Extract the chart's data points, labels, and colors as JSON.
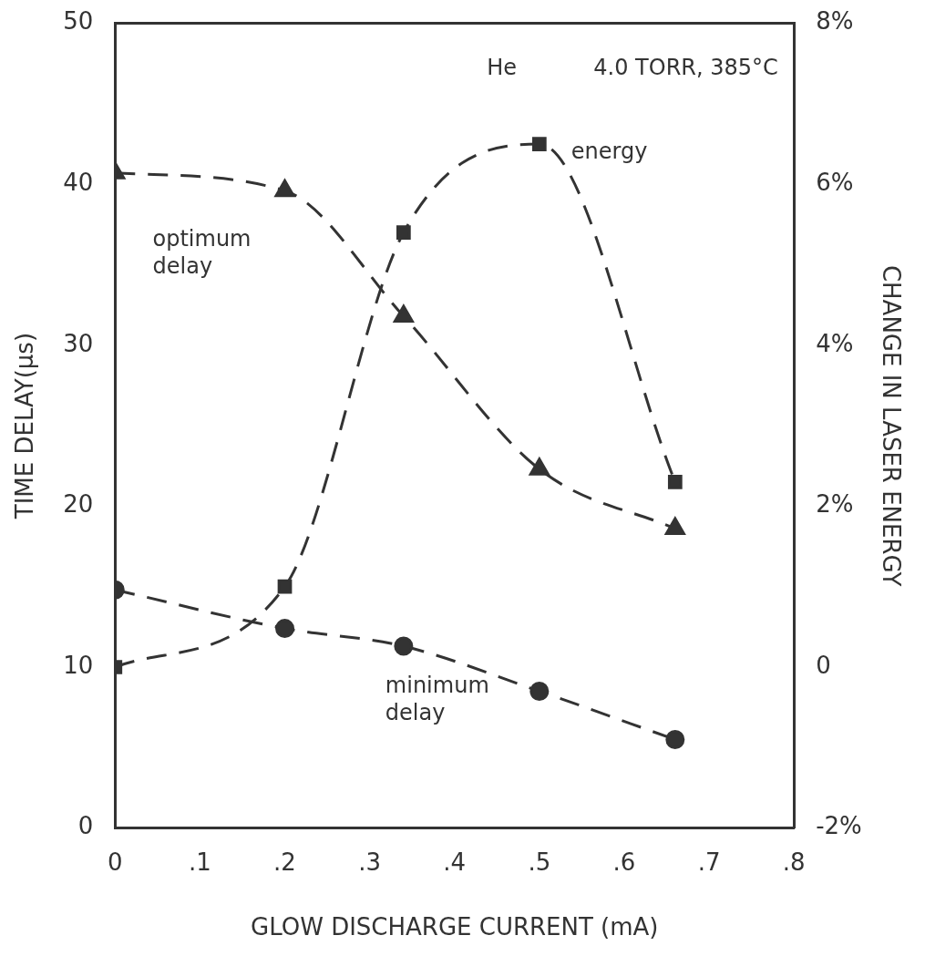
{
  "chart_data": {
    "type": "line",
    "xlabel": "GLOW DISCHARGE CURRENT (mA)",
    "ylabel": "TIME DELAY(μs)",
    "y2label": "CHANGE IN LASER ENERGY",
    "annotations": [
      "He",
      "4.0 TORR, 385°C"
    ],
    "x": [
      0,
      0.2,
      0.34,
      0.5,
      0.66
    ],
    "series": [
      {
        "name": "optimum delay",
        "color": "#333333",
        "marker": "triangle",
        "values": [
          40.7,
          39.6,
          31.8,
          22.3,
          18.6
        ]
      },
      {
        "name": "energy",
        "color": "#333333",
        "marker": "square",
        "axis": "y2",
        "values": [
          0,
          1.0,
          5.4,
          6.5,
          2.3
        ]
      },
      {
        "name": "minimum delay",
        "color": "#333333",
        "marker": "circle",
        "values": [
          14.8,
          12.4,
          11.3,
          8.5,
          5.5
        ]
      }
    ],
    "xlim": [
      0,
      0.8
    ],
    "xticks": [
      0,
      {
        "value": 0.1,
        "label": ".1"
      },
      {
        "value": 0.2,
        "label": ".2"
      },
      {
        "value": 0.3,
        "label": ".3"
      },
      {
        "value": 0.4,
        "label": ".4"
      },
      {
        "value": 0.5,
        "label": ".5"
      },
      {
        "value": 0.6,
        "label": ".6"
      },
      {
        "value": 0.7,
        "label": ".7"
      },
      {
        "value": 0.8,
        "label": ".8"
      }
    ],
    "ylim": [
      0,
      50
    ],
    "yticks": [
      0,
      10,
      20,
      30,
      40,
      50
    ],
    "y2lim": [
      -2,
      8
    ],
    "y2ticks": [
      {
        "value": -2,
        "label": "-2%"
      },
      0,
      {
        "value": 2,
        "label": "2%"
      },
      {
        "value": 4,
        "label": "4%"
      },
      {
        "value": 6,
        "label": "6%"
      },
      {
        "value": 8,
        "label": "8%"
      }
    ],
    "grid": false,
    "legend": false,
    "line_style": "dashed"
  }
}
